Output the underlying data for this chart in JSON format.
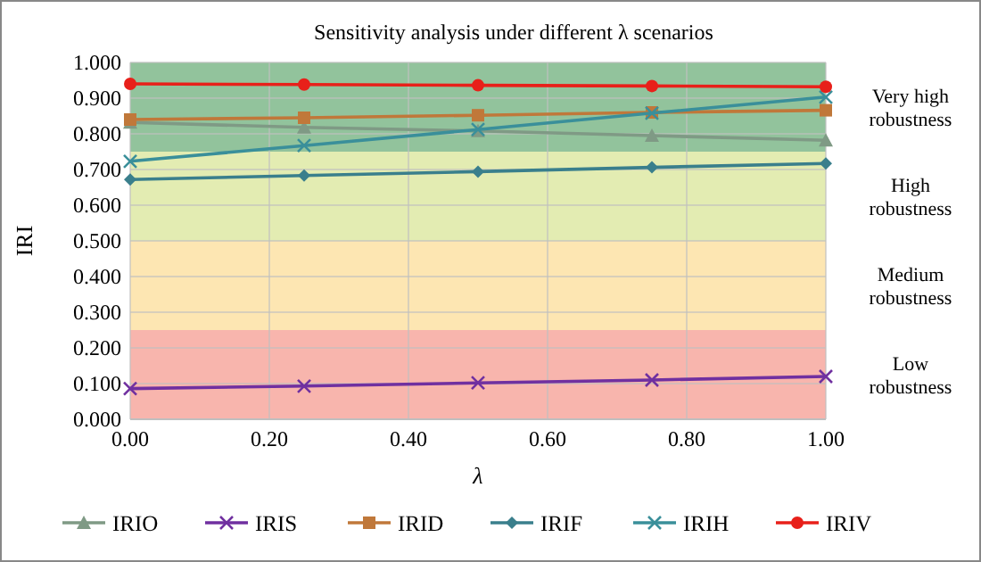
{
  "chart_data": {
    "type": "line",
    "title": "Sensitivity analysis under different λ scenarios",
    "xlabel": "λ",
    "ylabel": "IRI",
    "x": [
      0,
      0.25,
      0.5,
      0.75,
      1
    ],
    "xlim": [
      0,
      1
    ],
    "xticks": [
      {
        "value": 0,
        "label": "0.00"
      },
      {
        "value": 0.2,
        "label": "0.20"
      },
      {
        "value": 0.4,
        "label": "0.40"
      },
      {
        "value": 0.6,
        "label": "0.60"
      },
      {
        "value": 0.8,
        "label": "0.80"
      },
      {
        "value": 1,
        "label": "1.00"
      }
    ],
    "ylim": [
      0,
      1
    ],
    "yticks": [
      {
        "value": 0,
        "label": "0.000"
      },
      {
        "value": 0.1,
        "label": "0.100"
      },
      {
        "value": 0.2,
        "label": "0.200"
      },
      {
        "value": 0.3,
        "label": "0.300"
      },
      {
        "value": 0.4,
        "label": "0.400"
      },
      {
        "value": 0.5,
        "label": "0.500"
      },
      {
        "value": 0.6,
        "label": "0.600"
      },
      {
        "value": 0.7,
        "label": "0.700"
      },
      {
        "value": 0.8,
        "label": "0.800"
      },
      {
        "value": 0.9,
        "label": "0.900"
      },
      {
        "value": 1,
        "label": "1.000"
      }
    ],
    "grid": true,
    "legend": "bottom",
    "bands": [
      {
        "axis": "y",
        "from": 0.75,
        "to": 1,
        "label": "Very high robustness",
        "color": "#92c39c"
      },
      {
        "axis": "y",
        "from": 0.5,
        "to": 0.75,
        "label": "High robustness",
        "color": "#e3ecb2"
      },
      {
        "axis": "y",
        "from": 0.25,
        "to": 0.5,
        "label": "Medium robustness",
        "color": "#fde6b2"
      },
      {
        "axis": "y",
        "from": 0,
        "to": 0.25,
        "label": "Low robustness",
        "color": "#f8b5ad"
      }
    ],
    "series": [
      {
        "name": "IRIO",
        "color": "#7f9a85",
        "marker": "triangle",
        "values": [
          0.832,
          0.818,
          0.808,
          0.795,
          0.782
        ]
      },
      {
        "name": "IRIS",
        "color": "#7030a0",
        "marker": "cross",
        "values": [
          0.086,
          0.093,
          0.102,
          0.11,
          0.12
        ]
      },
      {
        "name": "IRID",
        "color": "#c0783a",
        "marker": "square",
        "values": [
          0.84,
          0.845,
          0.852,
          0.86,
          0.866
        ]
      },
      {
        "name": "IRIF",
        "color": "#3a7f8c",
        "marker": "diamond",
        "values": [
          0.672,
          0.683,
          0.694,
          0.706,
          0.717
        ]
      },
      {
        "name": "IRIH",
        "color": "#3a8f9a",
        "marker": "cross",
        "values": [
          0.723,
          0.767,
          0.812,
          0.858,
          0.903
        ]
      },
      {
        "name": "IRIV",
        "color": "#e8201a",
        "marker": "circle",
        "values": [
          0.94,
          0.938,
          0.936,
          0.934,
          0.932
        ]
      }
    ]
  }
}
